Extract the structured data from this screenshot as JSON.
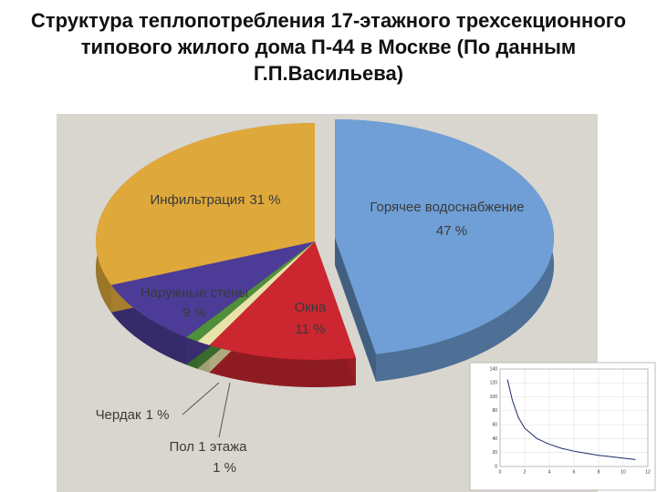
{
  "chart_data": [
    {
      "type": "pie3d",
      "title": "Структура теплопотребления 17-этажного трехсекционного типового жилого дома П-44 в Москве (По данным Г.П.Васильева)",
      "categories": [
        "Горячее водоснабжение",
        "Окна",
        "Пол 1 этажа",
        "Чердак",
        "Наружные стены",
        "Инфильтрация"
      ],
      "values": [
        47,
        11,
        1,
        1,
        9,
        31
      ],
      "value_labels": [
        "47 %",
        "11 %",
        "1 %",
        "1 %",
        "9 %",
        "31 %"
      ],
      "colors": [
        "#6f9fd6",
        "#cc2630",
        "#e9e3a8",
        "#4f8f3a",
        "#4c3c98",
        "#dfa83a"
      ]
    },
    {
      "type": "line",
      "x": [
        0.6,
        1,
        1.5,
        2,
        3,
        4,
        5,
        6,
        7,
        8,
        9,
        10,
        11
      ],
      "series": [
        {
          "color": "#1a2a6a",
          "values": [
            125,
            95,
            70,
            55,
            40,
            32,
            26,
            22,
            19,
            16,
            14,
            12,
            10
          ]
        }
      ],
      "xlim": [
        0,
        12
      ],
      "ylim": [
        0,
        140
      ],
      "xticks": [
        0,
        2,
        4,
        6,
        8,
        10,
        12
      ],
      "yticks": [
        0,
        20,
        40,
        60,
        80,
        100,
        120,
        140
      ],
      "grid": true
    }
  ]
}
